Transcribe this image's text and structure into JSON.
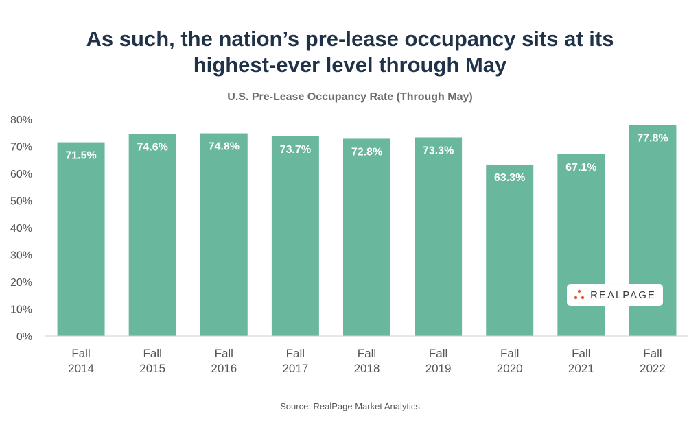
{
  "title_lines": [
    "As such, the nation’s pre-lease occupancy sits at its",
    "highest-ever level through May"
  ],
  "source": "Source: RealPage Market Analytics",
  "logo": {
    "text": "REALPAGE",
    "dot_color": "#e4572e"
  },
  "colors": {
    "bar": "#69b89e",
    "title": "#1f3248",
    "label": "#ffffff"
  },
  "chart_data": {
    "type": "bar",
    "title": "U.S. Pre-Lease Occupancy Rate (Through May)",
    "categories": [
      [
        "Fall",
        "2014"
      ],
      [
        "Fall",
        "2015"
      ],
      [
        "Fall",
        "2016"
      ],
      [
        "Fall",
        "2017"
      ],
      [
        "Fall",
        "2018"
      ],
      [
        "Fall",
        "2019"
      ],
      [
        "Fall",
        "2020"
      ],
      [
        "Fall",
        "2021"
      ],
      [
        "Fall",
        "2022"
      ]
    ],
    "values": [
      71.5,
      74.6,
      74.8,
      73.7,
      72.8,
      73.3,
      63.3,
      67.1,
      77.8
    ],
    "data_labels": [
      "71.5%",
      "74.6%",
      "74.8%",
      "73.7%",
      "72.8%",
      "73.3%",
      "63.3%",
      "67.1%",
      "77.8%"
    ],
    "ylim": [
      0,
      80
    ],
    "yticks": [
      0,
      10,
      20,
      30,
      40,
      50,
      60,
      70,
      80
    ],
    "ytick_labels": [
      "0%",
      "10%",
      "20%",
      "30%",
      "40%",
      "50%",
      "60%",
      "70%",
      "80%"
    ],
    "xlabel": "",
    "ylabel": "",
    "grid": false,
    "legend": "none"
  }
}
